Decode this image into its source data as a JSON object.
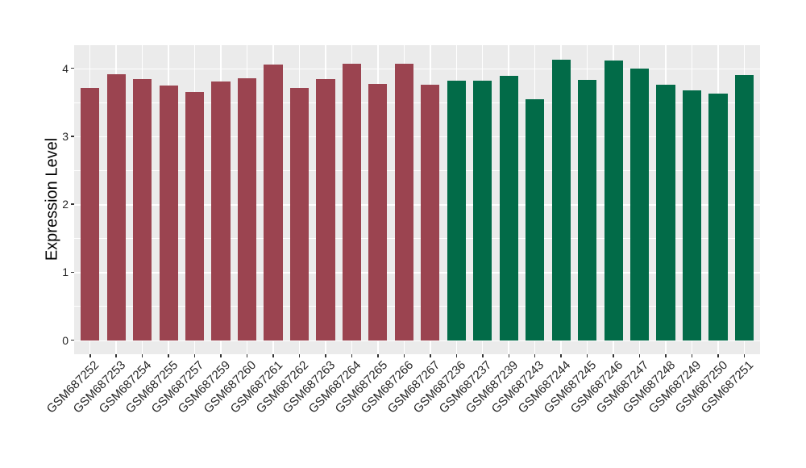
{
  "chart_data": {
    "type": "bar",
    "title": "",
    "xlabel": "",
    "ylabel": "Expression Level",
    "ylim": [
      0,
      4.34
    ],
    "yticks": [
      "0",
      "1",
      "2",
      "3",
      "4"
    ],
    "ytick_values": [
      0,
      1,
      2,
      3,
      4
    ],
    "yminor_values": [
      0.5,
      1.5,
      2.5,
      3.5
    ],
    "grid": "major and minor horizontal white lines, vertical white line at each category",
    "legend_position": "none",
    "panel_bg": "#EBEBEB",
    "grid_color": "#FFFFFF",
    "tick_color": "#333333",
    "axis_text_color": "#262626",
    "group_colors": {
      "groupA": "#9B4450",
      "groupB": "#026B48"
    },
    "bars": [
      {
        "label": "GSM687252",
        "value": 3.71,
        "group": "groupA"
      },
      {
        "label": "GSM687253",
        "value": 3.91,
        "group": "groupA"
      },
      {
        "label": "GSM687254",
        "value": 3.84,
        "group": "groupA"
      },
      {
        "label": "GSM687255",
        "value": 3.75,
        "group": "groupA"
      },
      {
        "label": "GSM687257",
        "value": 3.65,
        "group": "groupA"
      },
      {
        "label": "GSM687259",
        "value": 3.8,
        "group": "groupA"
      },
      {
        "label": "GSM687260",
        "value": 3.85,
        "group": "groupA"
      },
      {
        "label": "GSM687261",
        "value": 4.05,
        "group": "groupA"
      },
      {
        "label": "GSM687262",
        "value": 3.71,
        "group": "groupA"
      },
      {
        "label": "GSM687263",
        "value": 3.84,
        "group": "groupA"
      },
      {
        "label": "GSM687264",
        "value": 4.06,
        "group": "groupA"
      },
      {
        "label": "GSM687265",
        "value": 3.77,
        "group": "groupA"
      },
      {
        "label": "GSM687266",
        "value": 4.06,
        "group": "groupA"
      },
      {
        "label": "GSM687267",
        "value": 3.76,
        "group": "groupA"
      },
      {
        "label": "GSM687236",
        "value": 3.82,
        "group": "groupB"
      },
      {
        "label": "GSM687237",
        "value": 3.82,
        "group": "groupB"
      },
      {
        "label": "GSM687239",
        "value": 3.89,
        "group": "groupB"
      },
      {
        "label": "GSM687243",
        "value": 3.54,
        "group": "groupB"
      },
      {
        "label": "GSM687244",
        "value": 4.12,
        "group": "groupB"
      },
      {
        "label": "GSM687245",
        "value": 3.83,
        "group": "groupB"
      },
      {
        "label": "GSM687246",
        "value": 4.11,
        "group": "groupB"
      },
      {
        "label": "GSM687247",
        "value": 4.0,
        "group": "groupB"
      },
      {
        "label": "GSM687248",
        "value": 3.76,
        "group": "groupB"
      },
      {
        "label": "GSM687249",
        "value": 3.67,
        "group": "groupB"
      },
      {
        "label": "GSM687250",
        "value": 3.63,
        "group": "groupB"
      },
      {
        "label": "GSM687251",
        "value": 3.9,
        "group": "groupB"
      }
    ]
  }
}
